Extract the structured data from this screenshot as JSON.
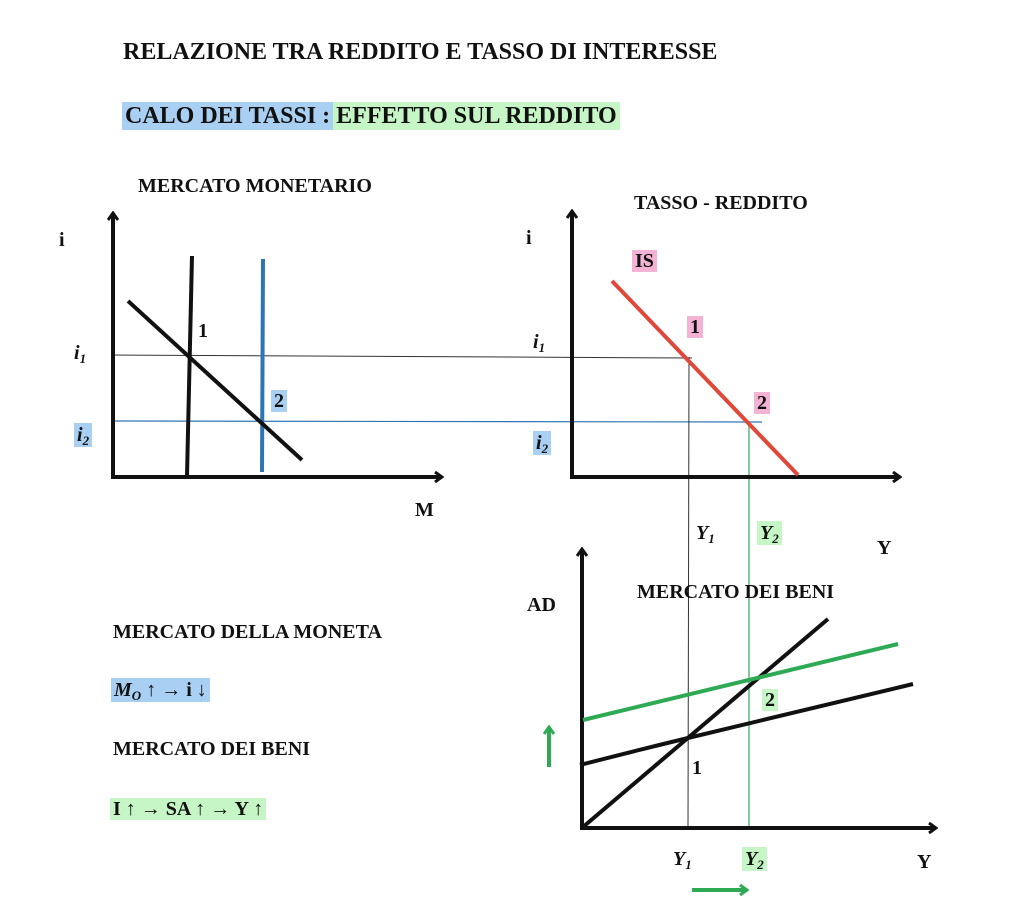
{
  "title": "RELAZIONE TRA REDDITO E TASSO DI INTERESSE",
  "subtitle": {
    "part1": "CALO DEI TASSI :",
    "part2": "EFFETTO SUL REDDITO"
  },
  "money_market": {
    "title": "MERCATO MONETARIO",
    "y_axis": "i",
    "x_axis": "M",
    "i1": "i",
    "i1_sub": "1",
    "i2": "i",
    "i2_sub": "2",
    "point1": "1",
    "point2": "2"
  },
  "is_chart": {
    "title": "TASSO - REDDITO",
    "y_axis": "i",
    "x_axis": "Y",
    "curve": "IS",
    "i1": "i",
    "i1_sub": "1",
    "i2": "i",
    "i2_sub": "2",
    "point1": "1",
    "point2": "2",
    "y1": "Y",
    "y1_sub": "1",
    "y2": "Y",
    "y2_sub": "2"
  },
  "goods_market": {
    "title": "MERCATO DEI BENI",
    "y_axis": "AD",
    "x_axis": "Y",
    "point1": "1",
    "point2": "2",
    "y1": "Y",
    "y1_sub": "1",
    "y2": "Y",
    "y2_sub": "2"
  },
  "notes": {
    "money_heading": "MERCATO DELLA MONETA",
    "money_formula": "M",
    "money_formula_sub": "O",
    "money_formula_rest": " ↑ → i ↓",
    "goods_heading": "MERCATO DEI BENI",
    "goods_formula": "I ↑ → SA ↑ →  Y ↑"
  },
  "colors": {
    "blue": "#2e75b6",
    "red": "#e0483a",
    "green": "#2eaa55",
    "blue_highlight": "#a9cff2",
    "green_highlight": "#c6f5c6",
    "pink_highlight": "#f4b2d4"
  }
}
